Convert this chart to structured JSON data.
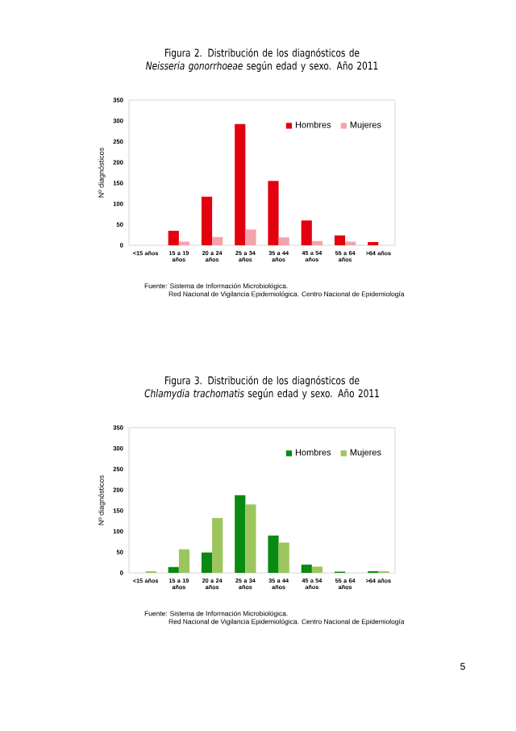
{
  "chart_data": [
    {
      "type": "bar",
      "title": "Figura 2. Distribución de los diagnósticos de *Neisseria gonorrhoeae* según edad y sexo. Año 2011",
      "ylabel": "Nº diagnósticos",
      "categories": [
        "<15 años",
        "15 a 19 años",
        "20 a 24 años",
        "25 a 34 años",
        "35 a 44 años",
        "45 a 54 años",
        "55 a 64 años",
        ">64 años"
      ],
      "series": [
        {
          "name": "Hombres",
          "color": "#e3000f",
          "values": [
            0,
            35,
            117,
            292,
            155,
            60,
            24,
            8
          ]
        },
        {
          "name": "Mujeres",
          "color": "#f5a3aa",
          "values": [
            0,
            9,
            20,
            38,
            19,
            10,
            9,
            0
          ]
        }
      ],
      "ylim": [
        0,
        350
      ],
      "yticks": [
        0,
        50,
        100,
        150,
        200,
        250,
        300,
        350
      ],
      "legend": "top right",
      "annotations": [
        "Fuente: Sistema de Información Microbiológica.",
        "Red Nacional de Vigilancia Epidemiológica. Centro Nacional de Epidemiología"
      ]
    },
    {
      "type": "bar",
      "title": "Figura 3. Distribución de los diagnósticos de *Chlamydia trachomatis* según edad y sexo. Año 2011",
      "ylabel": "Nº diagnósticos",
      "categories": [
        "<15 años",
        "15 a 19 años",
        "20 a 24 años",
        "25 a 34 años",
        "35 a 44 años",
        "45 a 54 años",
        "55 a 64 años",
        ">64 años"
      ],
      "series": [
        {
          "name": "Hombres",
          "color": "#0a8a12",
          "values": [
            0,
            14,
            49,
            187,
            90,
            20,
            3,
            4
          ]
        },
        {
          "name": "Mujeres",
          "color": "#9dc55e",
          "values": [
            4,
            57,
            132,
            165,
            73,
            15,
            0,
            4
          ]
        }
      ],
      "ylim": [
        0,
        350
      ],
      "yticks": [
        0,
        50,
        100,
        150,
        200,
        250,
        300,
        350
      ],
      "legend": "top right",
      "annotations": [
        "Fuente: Sistema de Información Microbiológica.",
        "Red Nacional de Vigilancia Epidemiológica. Centro Nacional de Epidemiología",
        "5"
      ]
    }
  ]
}
